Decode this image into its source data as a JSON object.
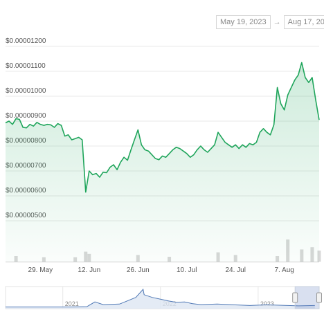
{
  "date_range": {
    "from": "May 19, 2023",
    "arrow": "→",
    "to": "Aug 17, 2023"
  },
  "colors": {
    "line": "#1fa55b",
    "volume": "#c8c8c8",
    "navigator_line": "#4f78b5",
    "navigator_fill": "#dde6f3",
    "grid": "#e8e8e8"
  },
  "chart_data": {
    "type": "area",
    "title": "",
    "xlabel": "",
    "ylabel": "",
    "y_tick_labels": [
      "$0.00000500",
      "$0.00000600",
      "$0.00000700",
      "$0.00000800",
      "$0.00000900",
      "$0.00001000",
      "$0.00001100",
      "$0.00001200"
    ],
    "ylim": [
      4.3e-06,
      1.28e-05
    ],
    "x_tick_labels": [
      {
        "label": "29. May",
        "date": "2023-05-29"
      },
      {
        "label": "12. Jun",
        "date": "2023-06-12"
      },
      {
        "label": "26. Jun",
        "date": "2023-06-26"
      },
      {
        "label": "10. Jul",
        "date": "2023-07-10"
      },
      {
        "label": "24. Jul",
        "date": "2023-07-24"
      },
      {
        "label": "7. Aug",
        "date": "2023-08-07"
      }
    ],
    "xlim": [
      "2023-05-19",
      "2023-08-17"
    ],
    "grid": true,
    "series": [
      {
        "points": [
          [
            "2023-05-19",
            8.68e-06
          ],
          [
            "2023-05-20",
            8.75e-06
          ],
          [
            "2023-05-21",
            8.62e-06
          ],
          [
            "2023-05-22",
            8.85e-06
          ],
          [
            "2023-05-23",
            8.82e-06
          ],
          [
            "2023-05-24",
            8.5e-06
          ],
          [
            "2023-05-25",
            8.48e-06
          ],
          [
            "2023-05-26",
            8.62e-06
          ],
          [
            "2023-05-27",
            8.55e-06
          ],
          [
            "2023-05-28",
            8.7e-06
          ],
          [
            "2023-05-29",
            8.62e-06
          ],
          [
            "2023-05-30",
            8.58e-06
          ],
          [
            "2023-05-31",
            8.62e-06
          ],
          [
            "2023-06-01",
            8.6e-06
          ],
          [
            "2023-06-02",
            8.5e-06
          ],
          [
            "2023-06-03",
            8.65e-06
          ],
          [
            "2023-06-04",
            8.58e-06
          ],
          [
            "2023-06-05",
            8.15e-06
          ],
          [
            "2023-06-06",
            8.2e-06
          ],
          [
            "2023-06-07",
            8e-06
          ],
          [
            "2023-06-08",
            8.05e-06
          ],
          [
            "2023-06-09",
            8.1e-06
          ],
          [
            "2023-06-10",
            8e-06
          ],
          [
            "2023-06-11",
            5.9e-06
          ],
          [
            "2023-06-12",
            6.75e-06
          ],
          [
            "2023-06-13",
            6.6e-06
          ],
          [
            "2023-06-14",
            6.65e-06
          ],
          [
            "2023-06-15",
            6.5e-06
          ],
          [
            "2023-06-16",
            6.7e-06
          ],
          [
            "2023-06-17",
            6.68e-06
          ],
          [
            "2023-06-18",
            6.9e-06
          ],
          [
            "2023-06-19",
            7e-06
          ],
          [
            "2023-06-20",
            6.8e-06
          ],
          [
            "2023-06-21",
            7.1e-06
          ],
          [
            "2023-06-22",
            7.3e-06
          ],
          [
            "2023-06-23",
            7.18e-06
          ],
          [
            "2023-06-24",
            7.6e-06
          ],
          [
            "2023-06-25",
            8e-06
          ],
          [
            "2023-06-26",
            8.4e-06
          ],
          [
            "2023-06-27",
            7.8e-06
          ],
          [
            "2023-06-28",
            7.6e-06
          ],
          [
            "2023-06-29",
            7.55e-06
          ],
          [
            "2023-06-30",
            7.4e-06
          ],
          [
            "2023-07-01",
            7.25e-06
          ],
          [
            "2023-07-02",
            7.2e-06
          ],
          [
            "2023-07-03",
            7.35e-06
          ],
          [
            "2023-07-04",
            7.3e-06
          ],
          [
            "2023-07-05",
            7.45e-06
          ],
          [
            "2023-07-06",
            7.6e-06
          ],
          [
            "2023-07-07",
            7.7e-06
          ],
          [
            "2023-07-08",
            7.65e-06
          ],
          [
            "2023-07-09",
            7.55e-06
          ],
          [
            "2023-07-10",
            7.45e-06
          ],
          [
            "2023-07-11",
            7.3e-06
          ],
          [
            "2023-07-12",
            7.4e-06
          ],
          [
            "2023-07-13",
            7.6e-06
          ],
          [
            "2023-07-14",
            7.75e-06
          ],
          [
            "2023-07-15",
            7.6e-06
          ],
          [
            "2023-07-16",
            7.5e-06
          ],
          [
            "2023-07-17",
            7.65e-06
          ],
          [
            "2023-07-18",
            7.8e-06
          ],
          [
            "2023-07-19",
            8.3e-06
          ],
          [
            "2023-07-20",
            8.1e-06
          ],
          [
            "2023-07-21",
            7.9e-06
          ],
          [
            "2023-07-22",
            7.8e-06
          ],
          [
            "2023-07-23",
            7.7e-06
          ],
          [
            "2023-07-24",
            7.8e-06
          ],
          [
            "2023-07-25",
            7.65e-06
          ],
          [
            "2023-07-26",
            7.8e-06
          ],
          [
            "2023-07-27",
            7.7e-06
          ],
          [
            "2023-07-28",
            7.85e-06
          ],
          [
            "2023-07-29",
            7.8e-06
          ],
          [
            "2023-07-30",
            7.9e-06
          ],
          [
            "2023-07-31",
            8.3e-06
          ],
          [
            "2023-08-01",
            8.45e-06
          ],
          [
            "2023-08-02",
            8.3e-06
          ],
          [
            "2023-08-03",
            8.2e-06
          ],
          [
            "2023-08-04",
            8.6e-06
          ],
          [
            "2023-08-05",
            1.01e-05
          ],
          [
            "2023-08-06",
            9.45e-06
          ],
          [
            "2023-08-07",
            9.2e-06
          ],
          [
            "2023-08-08",
            9.8e-06
          ],
          [
            "2023-08-09",
            1.01e-05
          ],
          [
            "2023-08-10",
            1.04e-05
          ],
          [
            "2023-08-11",
            1.06e-05
          ],
          [
            "2023-08-12",
            1.11e-05
          ],
          [
            "2023-08-13",
            1.05e-05
          ],
          [
            "2023-08-14",
            1.03e-05
          ],
          [
            "2023-08-15",
            1.05e-05
          ],
          [
            "2023-08-16",
            9.6e-06
          ],
          [
            "2023-08-17",
            8.8e-06
          ]
        ]
      }
    ],
    "volume": [
      {
        "date": "2023-05-22",
        "value": 0.25
      },
      {
        "date": "2023-05-30",
        "value": 0.2
      },
      {
        "date": "2023-06-08",
        "value": 0.2
      },
      {
        "date": "2023-06-11",
        "value": 0.45
      },
      {
        "date": "2023-06-12",
        "value": 0.35
      },
      {
        "date": "2023-06-26",
        "value": 0.3
      },
      {
        "date": "2023-07-05",
        "value": 0.22
      },
      {
        "date": "2023-07-19",
        "value": 0.42
      },
      {
        "date": "2023-07-24",
        "value": 0.3
      },
      {
        "date": "2023-08-05",
        "value": 0.25
      },
      {
        "date": "2023-08-08",
        "value": 1.0
      },
      {
        "date": "2023-08-12",
        "value": 0.55
      },
      {
        "date": "2023-08-15",
        "value": 0.65
      },
      {
        "date": "2023-08-17",
        "value": 0.5
      }
    ]
  },
  "navigator": {
    "tick_labels": [
      "2021",
      "2022",
      "2023"
    ],
    "selected_range": [
      "2023-05-19",
      "2023-08-17"
    ],
    "series": [
      [
        "2020-06",
        0.02
      ],
      [
        "2020-09",
        0.02
      ],
      [
        "2020-12",
        0.02
      ],
      [
        "2021-02",
        0.02
      ],
      [
        "2021-04",
        0.04
      ],
      [
        "2021-05",
        0.3
      ],
      [
        "2021-06",
        0.15
      ],
      [
        "2021-08",
        0.18
      ],
      [
        "2021-10",
        0.55
      ],
      [
        "2021-10-28",
        1.0
      ],
      [
        "2021-11",
        0.7
      ],
      [
        "2021-12",
        0.55
      ],
      [
        "2022-01",
        0.45
      ],
      [
        "2022-02",
        0.35
      ],
      [
        "2022-03",
        0.28
      ],
      [
        "2022-04",
        0.3
      ],
      [
        "2022-05",
        0.2
      ],
      [
        "2022-06",
        0.15
      ],
      [
        "2022-08",
        0.18
      ],
      [
        "2022-10",
        0.14
      ],
      [
        "2022-12",
        0.1
      ],
      [
        "2023-02",
        0.14
      ],
      [
        "2023-04",
        0.11
      ],
      [
        "2023-06",
        0.08
      ],
      [
        "2023-08",
        0.1
      ]
    ]
  }
}
